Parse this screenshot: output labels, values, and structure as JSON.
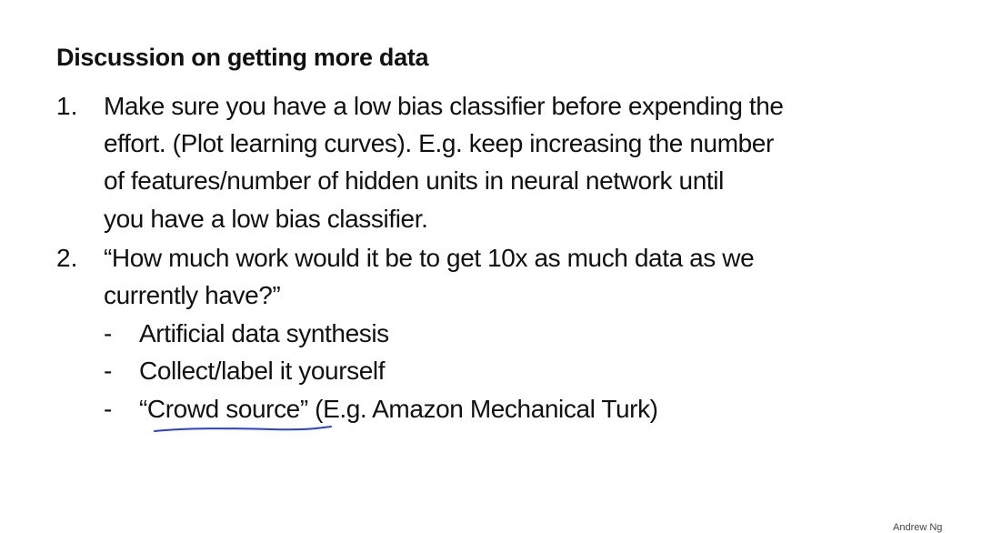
{
  "slide": {
    "title": "Discussion on getting more data",
    "item1": {
      "number": "1.",
      "lines": [
        "Make sure you have a low bias classifier before expending the",
        "effort. (Plot learning curves). E.g. keep increasing the number",
        "of features/number of hidden units in neural network until",
        "you have a low bias classifier."
      ]
    },
    "item2": {
      "number": "2.",
      "lines": [
        "“How much work would it be to get 10x as much data as we",
        "currently have?”"
      ],
      "bullets": [
        {
          "marker": "-",
          "text": "Artificial data synthesis"
        },
        {
          "marker": "-",
          "text": "Collect/label it yourself"
        },
        {
          "marker": "-",
          "text": "“Crowd source” (E.g. Amazon Mechanical Turk)"
        }
      ]
    },
    "annotation_color": "#2a3fd4",
    "credit": "Andrew Ng"
  }
}
